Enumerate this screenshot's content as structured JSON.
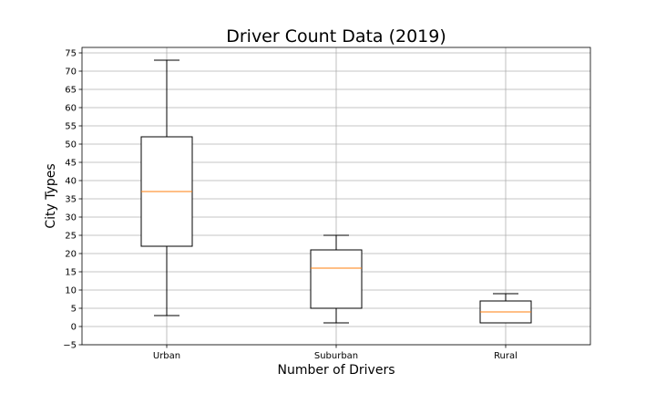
{
  "chart_data": {
    "type": "box",
    "title": "Driver Count Data (2019)",
    "xlabel": "Number of Drivers",
    "ylabel": "City Types",
    "ylim": [
      -5,
      76.5
    ],
    "yticks": [
      -5,
      0,
      5,
      10,
      15,
      20,
      25,
      30,
      35,
      40,
      45,
      50,
      55,
      60,
      65,
      70,
      75
    ],
    "ytick_labels": [
      "−5",
      "0",
      "5",
      "10",
      "15",
      "20",
      "25",
      "30",
      "35",
      "40",
      "45",
      "50",
      "55",
      "60",
      "65",
      "70",
      "75"
    ],
    "grid": true,
    "categories": [
      "Urban",
      "Suburban",
      "Rural"
    ],
    "boxes": [
      {
        "min": 3,
        "q1": 22,
        "median": 37,
        "q3": 52,
        "max": 73
      },
      {
        "min": 1,
        "q1": 5,
        "median": 16,
        "q3": 21,
        "max": 25
      },
      {
        "min": 1,
        "q1": 1,
        "median": 4,
        "q3": 7,
        "max": 9
      }
    ],
    "colors": {
      "box": "#000000",
      "median": "#ff7f0e",
      "grid": "#b0b0b0"
    }
  }
}
